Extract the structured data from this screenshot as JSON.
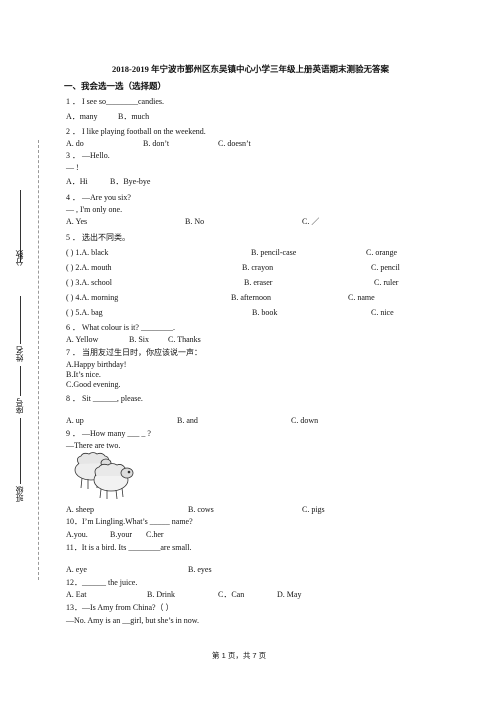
{
  "title": "2018-2019 年宁波市鄞州区东吴镇中心小学三年级上册英语期末测验无答案",
  "section1": "一、我会选一选（选择题）",
  "q1": {
    "stem": "1 ． I    see    so________candies.",
    "a": "A．many",
    "b": "B．much"
  },
  "q2": {
    "stem": "2 ． I                 like playing football on the weekend.",
    "a": "A. do",
    "b": "B. don’t",
    "c": "C. doesn’t"
  },
  "q3": {
    "stem": "3 ． —Hello.",
    "line2": "—                              !",
    "a": "A．Hi",
    "b": "B．Bye-bye"
  },
  "q4": {
    "stem": "4 ． —Are you six?",
    "line2": "—              , I'm only one.",
    "a": "A. Yes",
    "b": "B. No",
    "c": "C. ／"
  },
  "q5": {
    "stem": "5 ．  选出不同类。",
    "rows": [
      {
        "n": "(          ) 1.A.   black",
        "b": "B.    pencil-case",
        "c": "C. orange"
      },
      {
        "n": "(          ) 2.A. mouth",
        "b": "B. crayon",
        "c": "C. pencil"
      },
      {
        "n": "(          ) 3.A. school",
        "b": "B. eraser",
        "c": "C. ruler"
      },
      {
        "n": "(          ) 4.A. morning",
        "b": "B. afternoon",
        "c": "C. name"
      },
      {
        "n": "(          ) 5.A. bag",
        "b": "B. book",
        "c": "C. nice"
      }
    ]
  },
  "q6": {
    "stem": "6 ．  What colour is it?        ________.",
    "a": "A. Yellow",
    "b": "B. Six",
    "c": "C. Thanks"
  },
  "q7": {
    "stem": "7 ．  当朋友过生日时，你应该说一声：",
    "a": "A.Happy birthday!",
    "b": "B.It’s nice.",
    "c": "C.Good evening."
  },
  "q8": {
    "stem": "8 ．  Sit ______, please.",
    "a": "A. up",
    "b": "B. and",
    "c": "C. down"
  },
  "q9": {
    "stem": "9 ．  —How many  ___       _ ?",
    "line2": "—There are two.",
    "a": "A. sheep",
    "b": "B. cows",
    "c": "C. pigs"
  },
  "q10": {
    "stem": "10．I’m Lingling.What’s _____ name?",
    "a": "A.you.",
    "b": "B.your",
    "c": "C.her"
  },
  "q11": {
    "stem": "11．It is a bird. Its  ________are small.",
    "a": "A. eye",
    "b": "B. eyes"
  },
  "q12": {
    "stem": "12．______  the juice.",
    "a": "A. Eat",
    "b": "B. Drink",
    "c": "C．Can",
    "d": "D. May"
  },
  "q13": {
    "stem": "13．—Is Amy from China?（          ）",
    "line2": "—No. Amy is an __girl, but she’s in     now."
  },
  "side": {
    "score": "分数",
    "name": "姓名",
    "id": "座号",
    "class": "班级"
  },
  "footer": "第 1 页，共 7 页"
}
